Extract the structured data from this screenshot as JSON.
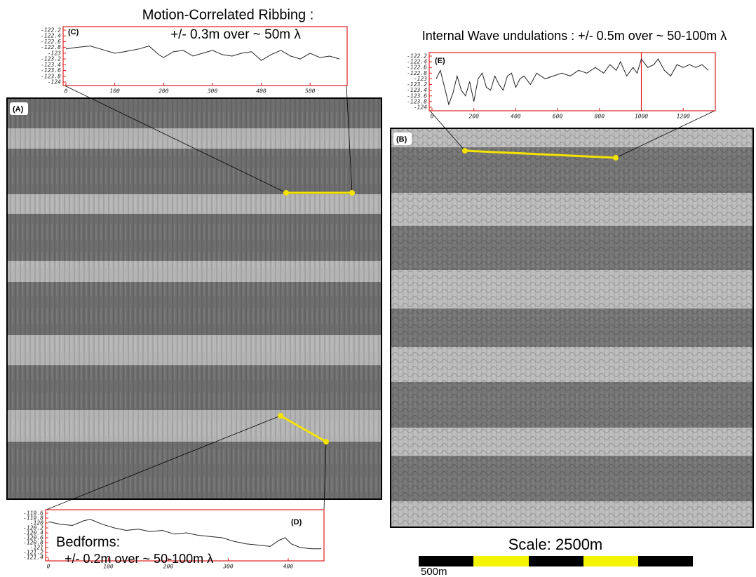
{
  "panel_labels": [
    "(A)",
    "(B)"
  ],
  "profiles": [
    {
      "label": "(C)",
      "title": "Motion-Correlated Ribbing :",
      "subtitle": "+/- 0.3m over ~ 50m λ",
      "xlim": [
        0,
        570
      ],
      "ylim": [
        -124,
        -122.2
      ],
      "xticks": [
        0,
        100,
        200,
        300,
        400,
        500
      ],
      "yticks": [
        -122.2,
        -122.4,
        -122.6,
        -122.8,
        -123,
        -123.2,
        -123.4,
        -123.6,
        -123.8,
        -124
      ],
      "x": [
        0,
        20,
        50,
        80,
        100,
        120,
        150,
        170,
        190,
        200,
        220,
        240,
        260,
        280,
        300,
        320,
        340,
        360,
        380,
        400,
        420,
        440,
        460,
        480,
        500,
        520,
        540,
        560
      ],
      "y": [
        -122.85,
        -122.8,
        -122.75,
        -122.9,
        -123.0,
        -122.95,
        -122.85,
        -122.75,
        -123.05,
        -123.15,
        -122.95,
        -122.9,
        -123.1,
        -123.0,
        -122.9,
        -123.05,
        -123.1,
        -123.0,
        -122.95,
        -123.25,
        -123.05,
        -122.9,
        -123.1,
        -123.2,
        -123.0,
        -123.15,
        -123.1,
        -123.2
      ]
    },
    {
      "label": "(E)",
      "title": "Internal Wave undulations : +/- 0.5m over ~ 50-100m λ",
      "xlim": [
        0,
        1340
      ],
      "ylim": [
        -124,
        -122.2
      ],
      "xticks": [
        0,
        200,
        400,
        600,
        800,
        1000,
        1200
      ],
      "yticks": [
        -122.2,
        -122.4,
        -122.6,
        -122.8,
        -123,
        -123.2,
        -123.4,
        -123.6,
        -123.8,
        -124
      ],
      "marker_x": 1000,
      "x": [
        20,
        40,
        60,
        80,
        100,
        120,
        140,
        160,
        180,
        200,
        220,
        240,
        260,
        280,
        300,
        320,
        340,
        360,
        380,
        400,
        420,
        440,
        470,
        500,
        540,
        580,
        620,
        660,
        700,
        740,
        780,
        820,
        850,
        880,
        900,
        930,
        960,
        980,
        1000,
        1030,
        1060,
        1080,
        1110,
        1140,
        1170,
        1200,
        1230,
        1260,
        1290,
        1320
      ],
      "y": [
        -123.0,
        -122.7,
        -123.3,
        -123.9,
        -123.5,
        -122.9,
        -123.4,
        -123.6,
        -123.1,
        -123.8,
        -123.0,
        -122.8,
        -123.3,
        -123.4,
        -122.9,
        -123.2,
        -123.4,
        -122.9,
        -122.8,
        -123.3,
        -123.0,
        -122.9,
        -123.2,
        -122.8,
        -123.0,
        -122.9,
        -122.8,
        -122.9,
        -122.7,
        -122.8,
        -122.6,
        -122.8,
        -122.5,
        -122.7,
        -122.4,
        -122.9,
        -122.6,
        -122.8,
        -122.3,
        -122.6,
        -122.5,
        -122.3,
        -122.7,
        -122.9,
        -122.5,
        -122.6,
        -122.5,
        -122.6,
        -122.5,
        -122.7
      ]
    },
    {
      "label": "(D)",
      "title": "Bedforms:",
      "subtitle": "+/- 0.2m  over ~ 50-100m λ",
      "xlim": [
        0,
        455
      ],
      "ylim": [
        -121.4,
        -119.6
      ],
      "xticks": [
        0,
        100,
        200,
        300,
        400
      ],
      "yticks": [
        -119.6,
        -119.8,
        -120,
        -120.2,
        -120.4,
        -120.6,
        -120.8,
        -121,
        -121.2,
        -121.4
      ],
      "x": [
        0,
        20,
        40,
        60,
        70,
        90,
        110,
        130,
        150,
        170,
        190,
        210,
        230,
        250,
        270,
        290,
        310,
        330,
        350,
        370,
        385,
        395,
        405,
        420,
        440,
        455
      ],
      "y": [
        -119.95,
        -120.05,
        -120.1,
        -119.9,
        -119.85,
        -120.05,
        -120.2,
        -120.3,
        -120.25,
        -120.35,
        -120.3,
        -120.45,
        -120.4,
        -120.5,
        -120.55,
        -120.6,
        -120.75,
        -120.85,
        -120.9,
        -120.95,
        -120.7,
        -120.6,
        -120.85,
        -121.0,
        -121.05,
        -121.05
      ]
    }
  ],
  "scale": {
    "title": "Scale: 2500m",
    "segment_label": "500m"
  }
}
